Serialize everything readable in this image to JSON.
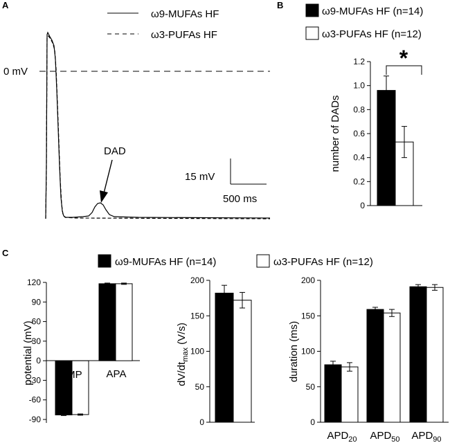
{
  "panels": {
    "a": "A",
    "b": "B",
    "c": "C"
  },
  "colors": {
    "mufa": "#000000",
    "pufa": "#ffffff",
    "stroke": "#000000"
  },
  "chart_data": [
    {
      "id": "A",
      "type": "line",
      "title": "",
      "series": [
        {
          "name": "ω9-MUFAs HF",
          "style": "solid"
        },
        {
          "name": "ω3-PUFAs HF",
          "style": "dashed"
        }
      ],
      "annotations": {
        "zero_line": "0 mV",
        "dad": "DAD",
        "scale_voltage": "15 mV",
        "scale_time": "500 ms"
      }
    },
    {
      "id": "B",
      "type": "bar",
      "legend": [
        "ω9-MUFAs HF (n=14)",
        "ω3-PUFAs HF (n=12)"
      ],
      "categories": [
        ""
      ],
      "series": [
        {
          "name": "ω9-MUFAs HF (n=14)",
          "values": [
            0.96
          ],
          "errors": [
            0.12
          ]
        },
        {
          "name": "ω3-PUFAs HF (n=12)",
          "values": [
            0.53
          ],
          "errors": [
            0.13
          ]
        }
      ],
      "ylabel": "number of DADs",
      "ylim": [
        0,
        1.2
      ],
      "yticks": [
        "0",
        "0.2",
        "0.4",
        "0.6",
        "0.8",
        "1.0",
        "1.2"
      ],
      "significance": "*"
    },
    {
      "id": "C1",
      "type": "bar",
      "legend": [
        "ω9-MUFAs HF (n=14)",
        "ω3-PUFAs HF (n=12)"
      ],
      "categories": [
        "RMP",
        "APA"
      ],
      "series": [
        {
          "name": "ω9-MUFAs HF (n=14)",
          "values": [
            -83,
            118
          ],
          "errors": [
            1,
            1
          ]
        },
        {
          "name": "ω3-PUFAs HF (n=12)",
          "values": [
            -82.5,
            118
          ],
          "errors": [
            1,
            1
          ]
        }
      ],
      "ylabel": "potential (mV)",
      "ylim": [
        -90,
        120
      ],
      "yticks": [
        "120",
        "90",
        "60",
        "30",
        "0",
        "-30",
        "-60",
        "-90"
      ]
    },
    {
      "id": "C2",
      "type": "bar",
      "categories": [
        ""
      ],
      "series": [
        {
          "name": "ω9-MUFAs HF (n=14)",
          "values": [
            182
          ],
          "errors": [
            11
          ]
        },
        {
          "name": "ω3-PUFAs HF (n=12)",
          "values": [
            172
          ],
          "errors": [
            11
          ]
        }
      ],
      "ylabel": "dV/dt",
      "ylabel_sub": "max",
      "ylabel_unit": " (V/s)",
      "ylim": [
        0,
        200
      ],
      "yticks": [
        "200",
        "150",
        "100",
        "50",
        "0"
      ]
    },
    {
      "id": "C3",
      "type": "bar",
      "categories": [
        {
          "base": "APD",
          "sub": "20"
        },
        {
          "base": "APD",
          "sub": "50"
        },
        {
          "base": "APD",
          "sub": "90"
        }
      ],
      "series": [
        {
          "name": "ω9-MUFAs HF (n=14)",
          "values": [
            81,
            159,
            191
          ],
          "errors": [
            5,
            3,
            3
          ]
        },
        {
          "name": "ω3-PUFAs HF (n=12)",
          "values": [
            78,
            154,
            190
          ],
          "errors": [
            6,
            5,
            4
          ]
        }
      ],
      "ylabel": "duration (ms)",
      "ylim": [
        0,
        200
      ],
      "yticks": [
        "200",
        "150",
        "100",
        "50",
        "0"
      ]
    }
  ]
}
